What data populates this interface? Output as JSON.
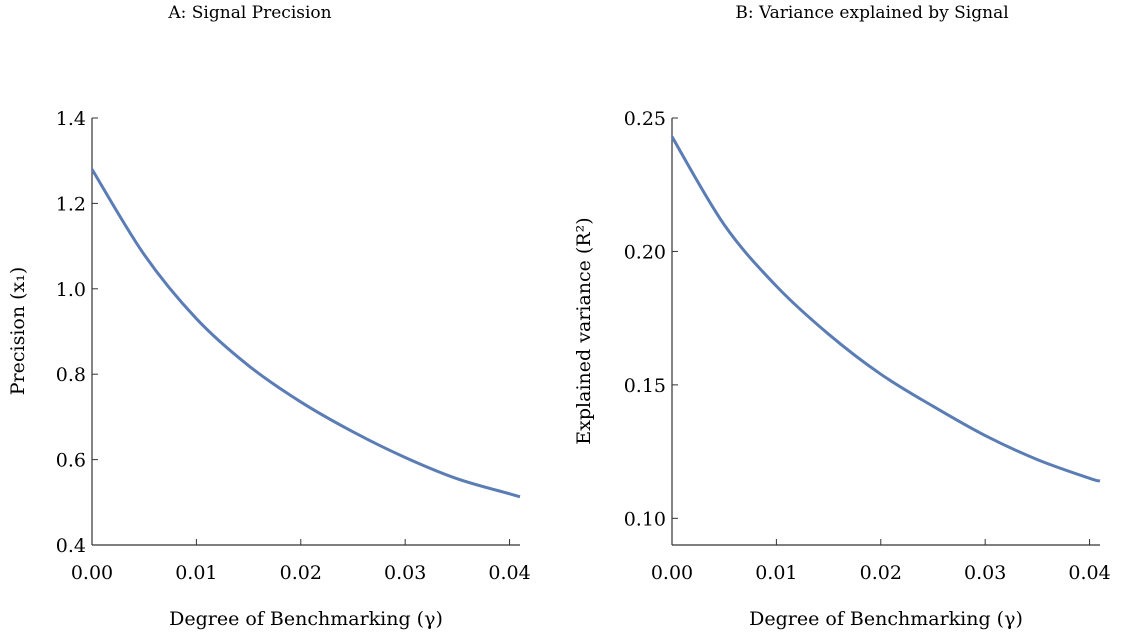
{
  "chart_data": [
    {
      "type": "line",
      "title": "A: Signal Precision",
      "xlabel": "Degree of Benchmarking (γ)",
      "ylabel": "Precision (x₁)",
      "xlim": [
        0,
        0.041
      ],
      "ylim": [
        0.4,
        1.4
      ],
      "xticks": [
        "0.00",
        "0.01",
        "0.02",
        "0.03",
        "0.04"
      ],
      "yticks": [
        "0.4",
        "0.6",
        "0.8",
        "1.0",
        "1.2",
        "1.4"
      ],
      "grid": false,
      "color": "#5b7db5",
      "x": [
        0,
        0.005,
        0.01,
        0.015,
        0.02,
        0.025,
        0.03,
        0.035,
        0.04,
        0.041
      ],
      "y": [
        1.28,
        1.08,
        0.93,
        0.82,
        0.735,
        0.665,
        0.605,
        0.555,
        0.52,
        0.513
      ]
    },
    {
      "type": "line",
      "title": "B: Variance explained by Signal",
      "xlabel": "Degree of Benchmarking (γ)",
      "ylabel": "Explained variance (R²)",
      "xlim": [
        0,
        0.041
      ],
      "ylim": [
        0.09,
        0.25
      ],
      "xticks": [
        "0.00",
        "0.01",
        "0.02",
        "0.03",
        "0.04"
      ],
      "yticks": [
        "0.10",
        "0.15",
        "0.20",
        "0.25"
      ],
      "grid": false,
      "color": "#5b7db5",
      "x": [
        0,
        0.005,
        0.01,
        0.015,
        0.02,
        0.025,
        0.03,
        0.035,
        0.04,
        0.041
      ],
      "y": [
        0.243,
        0.21,
        0.187,
        0.169,
        0.154,
        0.142,
        0.131,
        0.122,
        0.115,
        0.114
      ]
    }
  ]
}
